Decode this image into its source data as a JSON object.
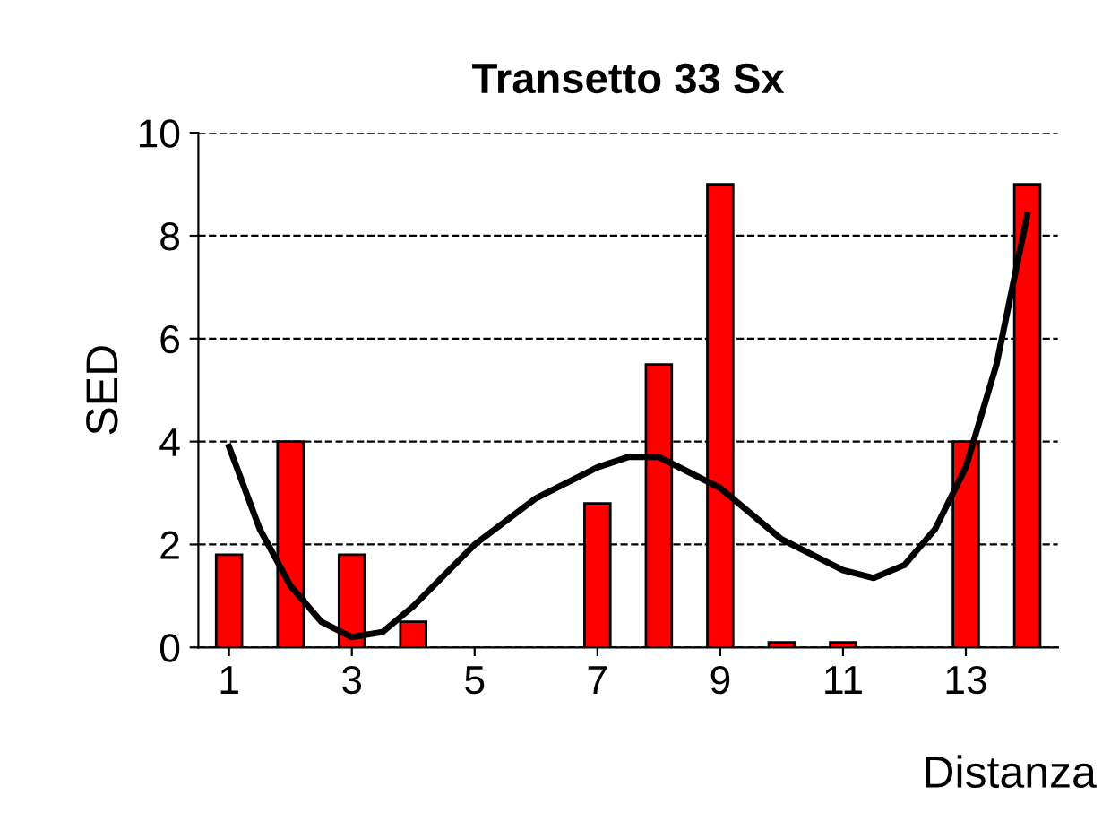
{
  "chart_data": {
    "type": "bar",
    "title": "Transetto 33 Sx",
    "xlabel": "Distanza",
    "ylabel": "SED",
    "x": [
      1,
      2,
      3,
      4,
      5,
      6,
      7,
      8,
      9,
      10,
      11,
      12,
      13,
      14
    ],
    "xlim": [
      0.5,
      14.5
    ],
    "xticks": [
      1,
      3,
      5,
      7,
      9,
      11,
      13
    ],
    "ylim": [
      0,
      10
    ],
    "yticks": [
      0,
      2,
      4,
      6,
      8,
      10
    ],
    "grid": "y",
    "series": [
      {
        "color": "#ff0000",
        "values": [
          1.8,
          4.0,
          1.8,
          0.5,
          0,
          0,
          2.8,
          5.5,
          9.0,
          0.1,
          0.1,
          0,
          4.0,
          9.0
        ]
      },
      {
        "type": "line",
        "color": "#000000",
        "x": [
          1,
          1.5,
          2,
          2.5,
          3,
          3.5,
          4,
          5,
          6,
          7,
          7.5,
          8,
          9,
          10,
          11,
          11.5,
          12,
          12.5,
          13,
          13.5,
          14
        ],
        "values": [
          3.9,
          2.3,
          1.2,
          0.5,
          0.2,
          0.3,
          0.8,
          2.0,
          2.9,
          3.5,
          3.7,
          3.7,
          3.1,
          2.1,
          1.5,
          1.35,
          1.6,
          2.3,
          3.5,
          5.5,
          8.4
        ]
      }
    ]
  }
}
